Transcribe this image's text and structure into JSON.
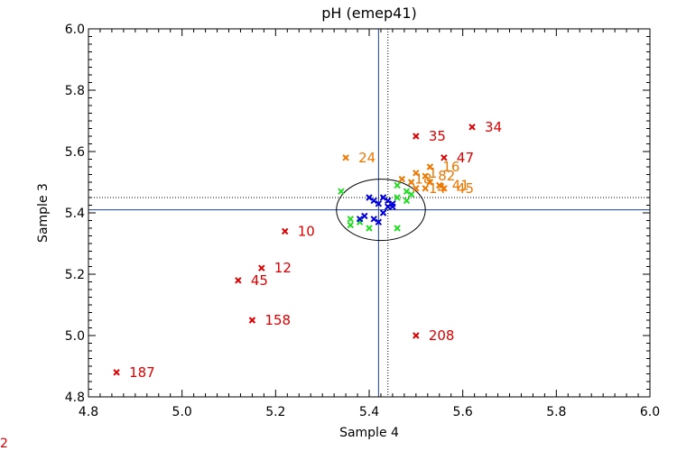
{
  "chart_data": {
    "type": "scatter",
    "title": "pH (emep41)",
    "xlabel": "Sample 4",
    "ylabel": "Sample 3",
    "xlim": [
      4.8,
      6.0
    ],
    "ylim": [
      4.8,
      6.0
    ],
    "xticks": [
      4.8,
      5.0,
      5.2,
      5.4,
      5.6,
      5.8,
      6.0
    ],
    "yticks": [
      4.8,
      5.0,
      5.2,
      5.4,
      5.6,
      5.8,
      6.0
    ],
    "xtick_labels": [
      "4.8",
      "5.0",
      "5.2",
      "5.4",
      "5.6",
      "5.8",
      "6.0"
    ],
    "ytick_labels": [
      "4.8",
      "5.0",
      "5.2",
      "5.4",
      "5.6",
      "5.8",
      "6.0"
    ],
    "reference_lines": {
      "solid_x": 5.42,
      "solid_y": 5.41,
      "dotted_x": 5.44,
      "dotted_y": 5.45
    },
    "ellipse": {
      "cx": 5.425,
      "cy": 5.41,
      "rx": 0.095,
      "ry": 0.1
    },
    "colors": {
      "red": "#dd0000",
      "orange": "#ee7700",
      "green": "#22dd22",
      "blue": "#0000dd",
      "line": "#1f3f8f"
    },
    "series": [
      {
        "name": "red",
        "color": "#dd0000",
        "points": [
          {
            "x": 5.62,
            "y": 5.68,
            "label": "34"
          },
          {
            "x": 5.5,
            "y": 5.65,
            "label": "35"
          },
          {
            "x": 5.56,
            "y": 5.58,
            "label": "47"
          },
          {
            "x": 5.22,
            "y": 5.34,
            "label": "10"
          },
          {
            "x": 5.17,
            "y": 5.22,
            "label": "12"
          },
          {
            "x": 5.12,
            "y": 5.18,
            "label": "45"
          },
          {
            "x": 5.15,
            "y": 5.05,
            "label": "158"
          },
          {
            "x": 5.5,
            "y": 5.0,
            "label": "208"
          },
          {
            "x": 4.86,
            "y": 4.88,
            "label": "187"
          }
        ]
      },
      {
        "name": "orange",
        "color": "#ee7700",
        "points": [
          {
            "x": 5.35,
            "y": 5.58,
            "label": "24"
          },
          {
            "x": 5.53,
            "y": 5.55,
            "label": "16"
          },
          {
            "x": 5.5,
            "y": 5.53,
            "label": "1"
          },
          {
            "x": 5.52,
            "y": 5.52,
            "label": "82"
          },
          {
            "x": 5.47,
            "y": 5.51,
            "label": "18"
          },
          {
            "x": 5.49,
            "y": 5.5,
            "label": ""
          },
          {
            "x": 5.53,
            "y": 5.5,
            "label": ""
          },
          {
            "x": 5.55,
            "y": 5.49,
            "label": "41"
          },
          {
            "x": 5.52,
            "y": 5.48,
            "label": ""
          },
          {
            "x": 5.56,
            "y": 5.48,
            "label": "45"
          },
          {
            "x": 5.5,
            "y": 5.48,
            "label": "14"
          }
        ]
      },
      {
        "name": "green",
        "color": "#22dd22",
        "points": [
          {
            "x": 5.34,
            "y": 5.47
          },
          {
            "x": 5.46,
            "y": 5.49
          },
          {
            "x": 5.48,
            "y": 5.47
          },
          {
            "x": 5.49,
            "y": 5.46
          },
          {
            "x": 5.46,
            "y": 5.45
          },
          {
            "x": 5.48,
            "y": 5.44
          },
          {
            "x": 5.36,
            "y": 5.38
          },
          {
            "x": 5.36,
            "y": 5.36
          },
          {
            "x": 5.38,
            "y": 5.37
          },
          {
            "x": 5.4,
            "y": 5.35
          },
          {
            "x": 5.46,
            "y": 5.35
          }
        ]
      },
      {
        "name": "blue",
        "color": "#0000dd",
        "points": [
          {
            "x": 5.4,
            "y": 5.45
          },
          {
            "x": 5.41,
            "y": 5.44
          },
          {
            "x": 5.43,
            "y": 5.45
          },
          {
            "x": 5.44,
            "y": 5.44
          },
          {
            "x": 5.42,
            "y": 5.43
          },
          {
            "x": 5.45,
            "y": 5.43
          },
          {
            "x": 5.44,
            "y": 5.42
          },
          {
            "x": 5.45,
            "y": 5.42
          },
          {
            "x": 5.43,
            "y": 5.4
          },
          {
            "x": 5.39,
            "y": 5.39
          },
          {
            "x": 5.41,
            "y": 5.38
          },
          {
            "x": 5.38,
            "y": 5.38
          },
          {
            "x": 5.42,
            "y": 5.37
          }
        ]
      }
    ]
  },
  "corner_label": "2"
}
